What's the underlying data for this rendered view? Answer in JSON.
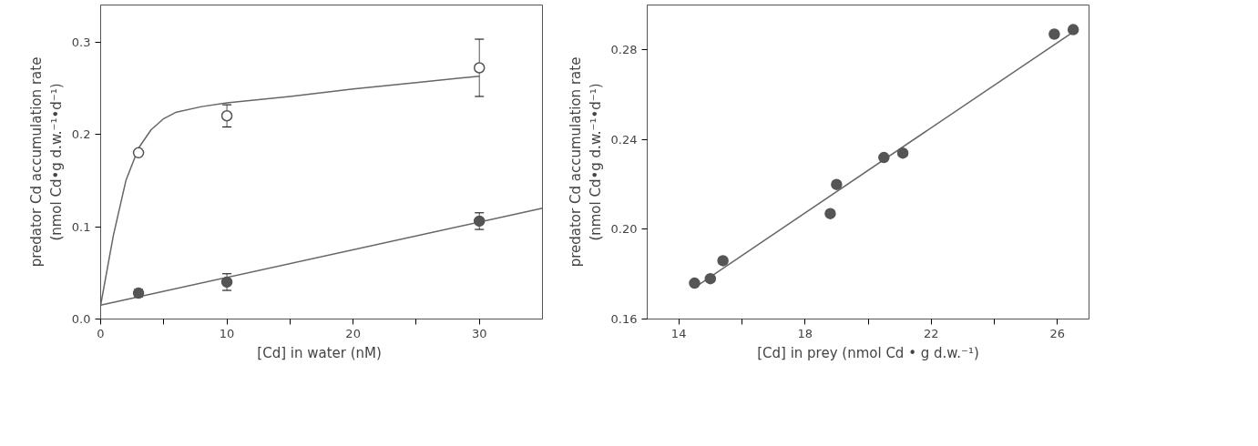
{
  "chart_data": [
    {
      "type": "scatter",
      "xlabel": "[Cd] in water  (nM)",
      "ylabel": "predator Cd accumulation rate\n(nmol Cd•g d.w.⁻¹•d⁻¹)",
      "xlim": [
        0,
        35
      ],
      "ylim": [
        0,
        0.34
      ],
      "xticks": [
        0,
        {
          "value": 5,
          "label": null
        },
        10,
        {
          "value": 15,
          "label": null
        },
        20,
        {
          "value": 25,
          "label": null
        },
        30
      ],
      "yticks": [
        "0.0",
        0.1,
        0.2,
        0.3
      ],
      "grid": false,
      "marker": "circle",
      "series": [
        {
          "type": "line",
          "color": "#666666",
          "marker": "none",
          "x": [
            0,
            1,
            2,
            3,
            4,
            5,
            6,
            8,
            10,
            15,
            20,
            25,
            30
          ],
          "values": [
            0.015,
            0.09,
            0.15,
            0.185,
            0.205,
            0.217,
            0.224,
            0.23,
            0.234,
            0.241,
            0.249,
            0.256,
            0.263
          ]
        },
        {
          "type": "line",
          "color": "#666666",
          "marker": "none",
          "x": [
            0,
            35
          ],
          "values": [
            0.015,
            0.12
          ]
        },
        {
          "color": "#ffffff",
          "x": [
            3,
            10,
            30
          ],
          "values": [
            0.18,
            0.22,
            0.272
          ],
          "errors": [
            null,
            0.012,
            0.031
          ]
        },
        {
          "color": "#555555",
          "x": [
            3,
            10,
            30
          ],
          "values": [
            0.028,
            0.04,
            0.106
          ],
          "errors": [
            0.004,
            0.009,
            0.009
          ]
        }
      ]
    },
    {
      "type": "scatter",
      "xlabel": "[Cd] in prey (nmol Cd • g d.w.⁻¹)",
      "ylabel": "predator Cd accumulation rate\n(nmol Cd•g d.w.⁻¹•d⁻¹)",
      "xlim": [
        13,
        27
      ],
      "ylim": [
        0.16,
        0.3
      ],
      "xticks": [
        14,
        {
          "value": 16,
          "label": null
        },
        18,
        {
          "value": 20,
          "label": null
        },
        22,
        {
          "value": 24,
          "label": null
        },
        26
      ],
      "yticks": [
        {
          "value": 0.16,
          "label": "0.16"
        },
        {
          "value": 0.2,
          "label": "0.20"
        },
        {
          "value": 0.24,
          "label": "0.24"
        },
        {
          "value": 0.28,
          "label": "0.28"
        }
      ],
      "grid": false,
      "marker": "circle",
      "series": [
        {
          "type": "line",
          "color": "#666666",
          "marker": "none",
          "x": [
            14.6,
            26.5
          ],
          "values": [
            0.175,
            0.288
          ]
        },
        {
          "color": "#555555",
          "x": [
            14.5,
            15.0,
            15.4,
            18.8,
            19.0,
            20.5,
            21.1,
            25.9,
            26.5
          ],
          "values": [
            0.176,
            0.178,
            0.186,
            0.207,
            0.22,
            0.232,
            0.234,
            0.287,
            0.289
          ]
        }
      ]
    }
  ]
}
